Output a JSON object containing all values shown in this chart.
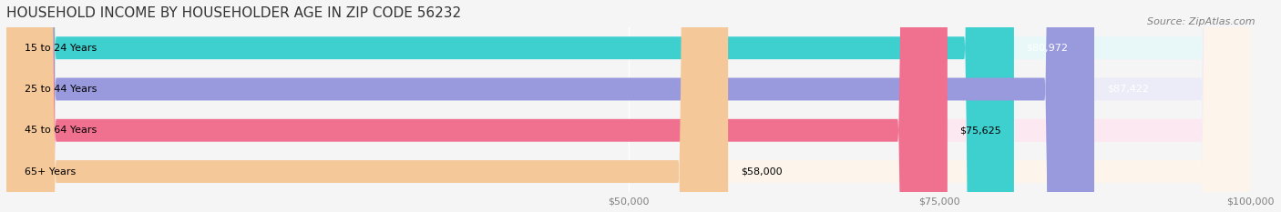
{
  "title": "HOUSEHOLD INCOME BY HOUSEHOLDER AGE IN ZIP CODE 56232",
  "source": "Source: ZipAtlas.com",
  "categories": [
    "15 to 24 Years",
    "25 to 44 Years",
    "45 to 64 Years",
    "65+ Years"
  ],
  "values": [
    80972,
    87422,
    75625,
    58000
  ],
  "labels": [
    "$80,972",
    "$87,422",
    "$75,625",
    "$58,000"
  ],
  "bar_colors": [
    "#3ecfcf",
    "#9999dd",
    "#f07090",
    "#f5c89a"
  ],
  "bar_bg_colors": [
    "#e8f8f8",
    "#ececf8",
    "#fce8f0",
    "#fdf5ec"
  ],
  "xlim": [
    0,
    100000
  ],
  "xticks": [
    50000,
    75000,
    100000
  ],
  "xtick_labels": [
    "$50,000",
    "$75,000",
    "$100,000"
  ],
  "title_fontsize": 11,
  "source_fontsize": 8,
  "label_fontsize": 8,
  "category_fontsize": 8,
  "bar_height": 0.55,
  "background_color": "#f5f5f5",
  "bar_bg_alpha": 1.0
}
